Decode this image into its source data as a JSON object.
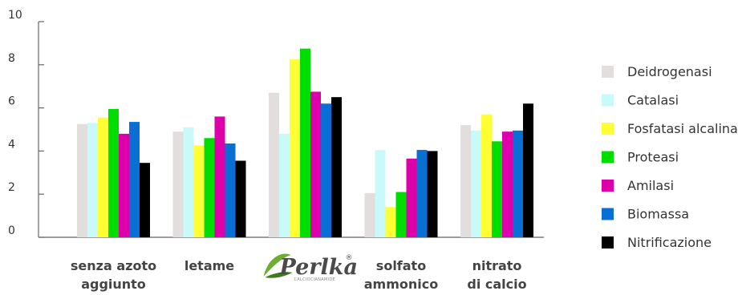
{
  "chart_data": {
    "type": "bar",
    "categories": [
      [
        "senza azoto",
        "aggiunto"
      ],
      [
        "letame"
      ],
      [
        "Perlka"
      ],
      [
        "solfato",
        "ammonico"
      ],
      [
        "nitrato",
        "di calcio"
      ]
    ],
    "logo": {
      "name": "Perlka",
      "mark": "®",
      "subtitle": "CALCIOCIANAMIDE"
    },
    "ylim": [
      0,
      10
    ],
    "yticks": [
      0,
      2,
      4,
      6,
      8,
      10
    ],
    "grid": false,
    "legend_position": "right",
    "series": [
      {
        "name": "Deidrogenasi",
        "color": "#e2dedd",
        "values": [
          5.25,
          4.9,
          6.7,
          2.05,
          5.2
        ]
      },
      {
        "name": "Catalasi",
        "color": "#c8fafa",
        "values": [
          5.3,
          5.1,
          4.8,
          4.05,
          4.95
        ]
      },
      {
        "name": "Fosfatasi alcalina",
        "color": "#ffff33",
        "values": [
          5.55,
          4.25,
          8.25,
          1.4,
          5.7
        ]
      },
      {
        "name": "Proteasi",
        "color": "#00dd00",
        "values": [
          5.95,
          4.6,
          8.75,
          2.1,
          4.45
        ]
      },
      {
        "name": "Amilasi",
        "color": "#dd00aa",
        "values": [
          4.8,
          5.6,
          6.75,
          3.65,
          4.9
        ]
      },
      {
        "name": "Biomassa",
        "color": "#0a6fd4",
        "values": [
          5.35,
          4.35,
          6.2,
          4.05,
          4.95
        ]
      },
      {
        "name": "Nitrificazione",
        "color": "#000000",
        "values": [
          3.45,
          3.55,
          6.5,
          4.0,
          6.2
        ]
      }
    ]
  }
}
